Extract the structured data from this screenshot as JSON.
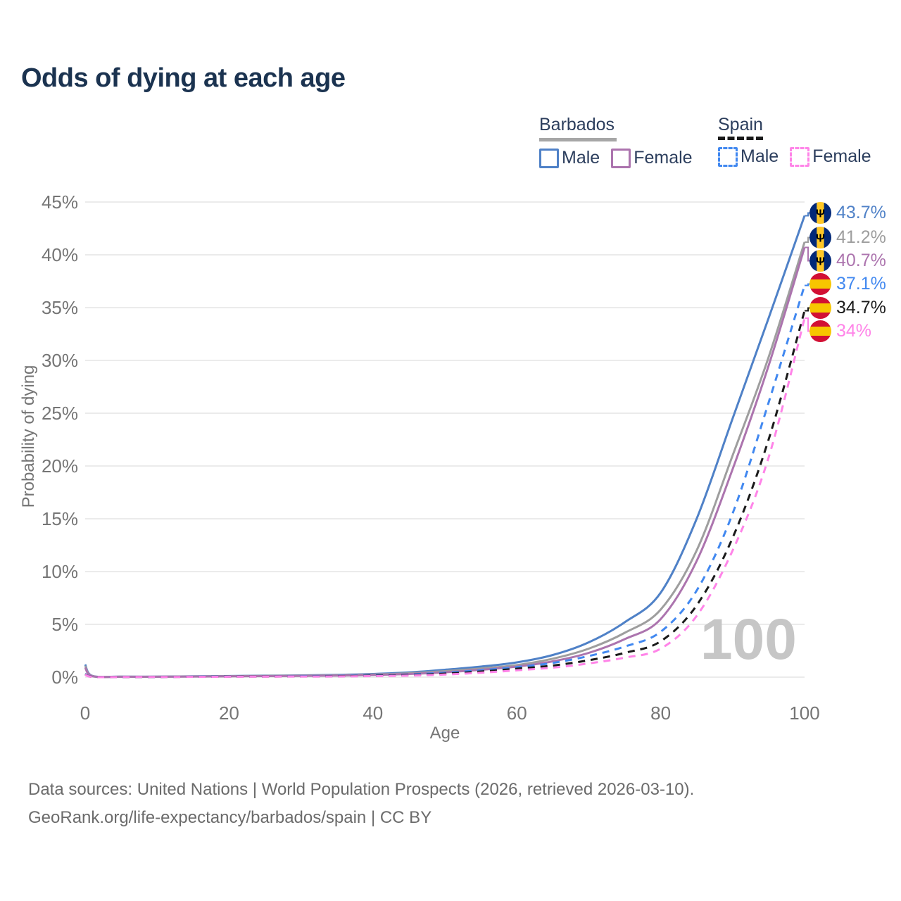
{
  "title": "Odds of dying at each age",
  "legend": {
    "groups": [
      {
        "country": "Barbados",
        "line_style": "solid",
        "underline_color": "#a6a6a6",
        "items": [
          {
            "label": "Male",
            "color": "#4f81c7"
          },
          {
            "label": "Female",
            "color": "#ac74ae"
          }
        ]
      },
      {
        "country": "Spain",
        "line_style": "dashed",
        "underline_color": "#1a1a1a",
        "items": [
          {
            "label": "Male",
            "color": "#4188f0"
          },
          {
            "label": "Female",
            "color": "#ff84e8"
          }
        ]
      }
    ]
  },
  "chart_data": {
    "type": "line",
    "title": "Odds of dying at each age",
    "xlabel": "Age",
    "ylabel": "Probability of dying",
    "xlim": [
      0,
      100
    ],
    "ylim": [
      0,
      45
    ],
    "x_ticks": [
      0,
      20,
      40,
      60,
      80,
      100
    ],
    "y_ticks": [
      "0%",
      "5%",
      "10%",
      "15%",
      "20%",
      "25%",
      "30%",
      "35%",
      "40%",
      "45%"
    ],
    "grid": "horizontal",
    "watermark": "100",
    "x": [
      0,
      1,
      5,
      10,
      15,
      20,
      25,
      30,
      35,
      40,
      45,
      50,
      55,
      60,
      65,
      70,
      75,
      80,
      85,
      90,
      95,
      100
    ],
    "series": [
      {
        "name": "Barbados Male",
        "country": "Barbados",
        "sex": "Male",
        "color": "#4f81c7",
        "dash": false,
        "end_label": "43.7%",
        "end_value": 43.7,
        "values": [
          1.2,
          0.12,
          0.05,
          0.05,
          0.08,
          0.11,
          0.14,
          0.17,
          0.22,
          0.3,
          0.45,
          0.7,
          1.0,
          1.4,
          2.1,
          3.3,
          5.2,
          8.0,
          15.0,
          24.5,
          34.0,
          43.7
        ]
      },
      {
        "name": "Barbados Both sexes",
        "country": "Barbados",
        "sex": "Both",
        "color": "#9e9e9e",
        "dash": false,
        "end_label": "41.2%",
        "end_value": 41.2,
        "values": [
          1.05,
          0.1,
          0.04,
          0.04,
          0.07,
          0.09,
          0.12,
          0.14,
          0.18,
          0.25,
          0.37,
          0.57,
          0.82,
          1.15,
          1.75,
          2.7,
          4.2,
          6.4,
          12.0,
          21.0,
          30.3,
          41.2
        ]
      },
      {
        "name": "Barbados Female",
        "country": "Barbados",
        "sex": "Female",
        "color": "#ac74ae",
        "dash": false,
        "end_label": "40.7%",
        "end_value": 40.7,
        "values": [
          0.9,
          0.09,
          0.04,
          0.04,
          0.06,
          0.08,
          0.1,
          0.12,
          0.15,
          0.21,
          0.3,
          0.46,
          0.7,
          1.0,
          1.5,
          2.3,
          3.6,
          5.5,
          11.0,
          19.7,
          29.5,
          40.7
        ]
      },
      {
        "name": "Spain Male",
        "country": "Spain",
        "sex": "Male",
        "color": "#4188f0",
        "dash": true,
        "end_label": "37.1%",
        "end_value": 37.1,
        "values": [
          0.3,
          0.03,
          0.02,
          0.02,
          0.04,
          0.06,
          0.07,
          0.09,
          0.12,
          0.16,
          0.25,
          0.42,
          0.65,
          0.95,
          1.35,
          2.0,
          2.9,
          4.3,
          8.2,
          15.5,
          26.0,
          37.1
        ]
      },
      {
        "name": "Spain Both sexes",
        "country": "Spain",
        "sex": "Both",
        "color": "#1a1a1a",
        "dash": true,
        "end_label": "34.7%",
        "end_value": 34.7,
        "values": [
          0.27,
          0.03,
          0.02,
          0.02,
          0.03,
          0.05,
          0.06,
          0.07,
          0.09,
          0.13,
          0.2,
          0.33,
          0.53,
          0.8,
          1.1,
          1.6,
          2.3,
          3.4,
          6.8,
          13.2,
          22.5,
          34.7
        ]
      },
      {
        "name": "Spain Female",
        "country": "Spain",
        "sex": "Female",
        "color": "#ff84e8",
        "dash": true,
        "end_label": "34%",
        "end_value": 34,
        "values": [
          0.24,
          0.02,
          0.015,
          0.015,
          0.025,
          0.04,
          0.05,
          0.06,
          0.07,
          0.1,
          0.15,
          0.25,
          0.42,
          0.65,
          0.9,
          1.3,
          1.85,
          2.7,
          5.8,
          12.0,
          20.8,
          34.0
        ]
      }
    ],
    "flag_colors": {
      "barbados_blue": "#012878",
      "barbados_gold": "#ffc726",
      "spain_red": "#d21034",
      "spain_yellow": "#f7c600"
    }
  },
  "footer": {
    "line1": "Data sources: United Nations | World Population Prospects (2026, retrieved 2026-03-10).",
    "line2": "GeoRank.org/life-expectancy/barbados/spain | CC BY"
  }
}
